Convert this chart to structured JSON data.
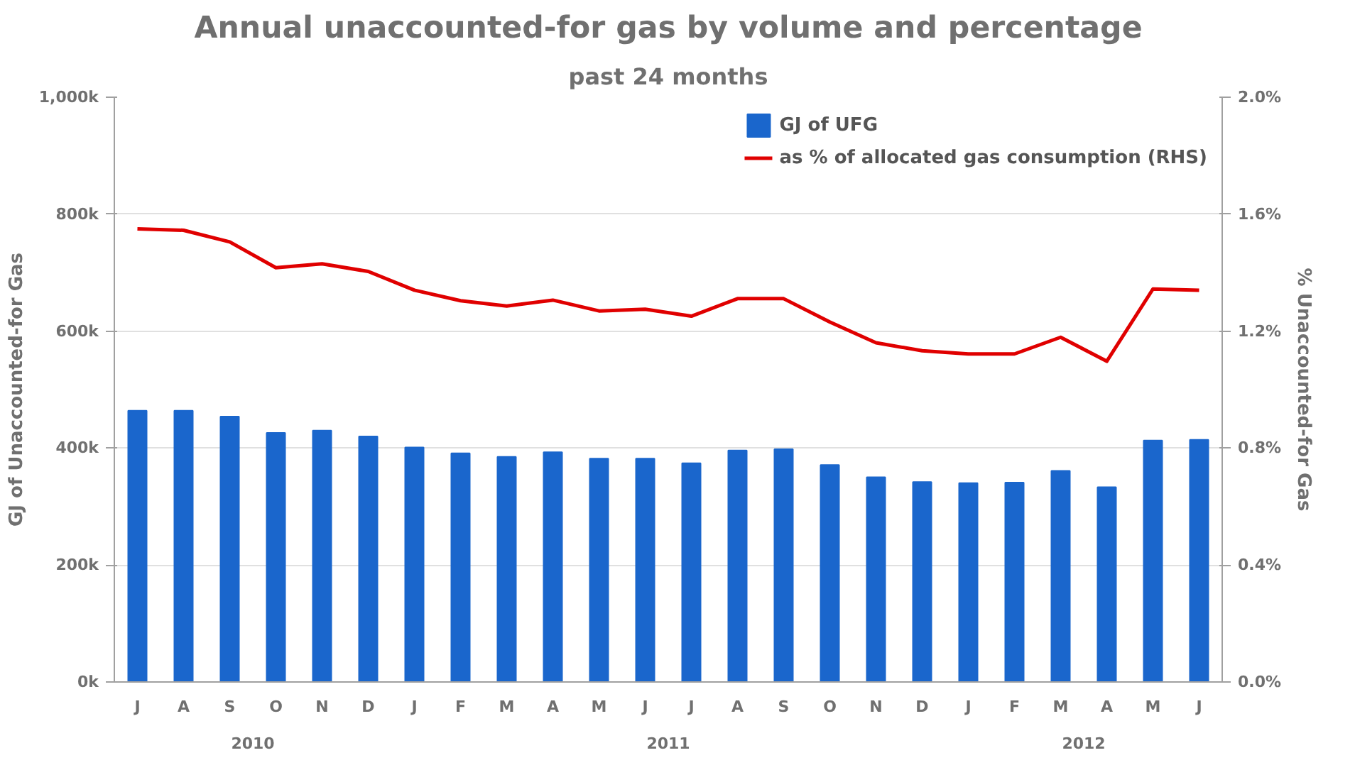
{
  "chart_data": {
    "type": "bar",
    "title": "Annual unaccounted-for gas by volume and percentage",
    "subtitle": "past 24 months",
    "ylabel": "GJ of Unaccounted-for Gas",
    "y2label": "% Unaccounted-for Gas",
    "categories": [
      "J",
      "A",
      "S",
      "O",
      "N",
      "D",
      "J",
      "F",
      "M",
      "A",
      "M",
      "J",
      "J",
      "A",
      "S",
      "O",
      "N",
      "D",
      "J",
      "F",
      "M",
      "A",
      "M",
      "J"
    ],
    "series": [
      {
        "name": "GJ of UFG",
        "color": "#1a66cc",
        "values": [
          464000,
          464000,
          454000,
          426000,
          430000,
          420000,
          401000,
          391000,
          385000,
          393000,
          382000,
          382000,
          374000,
          396000,
          398000,
          371000,
          350000,
          342000,
          340000,
          341000,
          361000,
          333000,
          413000,
          414000
        ]
      },
      {
        "name": "as % of allocated gas consumption (RHS)",
        "type": "line",
        "axis": "y2",
        "color": "#e00000",
        "values": [
          1.55,
          1.545,
          1.505,
          1.417,
          1.43,
          1.404,
          1.34,
          1.304,
          1.286,
          1.306,
          1.269,
          1.275,
          1.251,
          1.311,
          1.311,
          1.231,
          1.16,
          1.133,
          1.122,
          1.122,
          1.179,
          1.097,
          1.344,
          1.34
        ]
      }
    ],
    "ylim": [
      0,
      1000000
    ],
    "yticks": [
      {
        "value": 0,
        "label": "0k"
      },
      {
        "value": 200000,
        "label": "200k"
      },
      {
        "value": 400000,
        "label": "400k"
      },
      {
        "value": 600000,
        "label": "600k"
      },
      {
        "value": 800000,
        "label": "800k"
      },
      {
        "value": 1000000,
        "label": "1,000k"
      }
    ],
    "y2lim": [
      0,
      2.0
    ],
    "y2ticks": [
      {
        "value": 0,
        "label": "0.0%"
      },
      {
        "value": 0.4,
        "label": "0.4%"
      },
      {
        "value": 0.8,
        "label": "0.8%"
      },
      {
        "value": 1.2,
        "label": "1.2%"
      },
      {
        "value": 1.6,
        "label": "1.6%"
      },
      {
        "value": 2.0,
        "label": "2.0%"
      }
    ],
    "annotations": [
      "2010",
      "2011",
      "2012"
    ],
    "grid": "y",
    "legend": "top right",
    "line_style": "solid",
    "marker": "none"
  }
}
